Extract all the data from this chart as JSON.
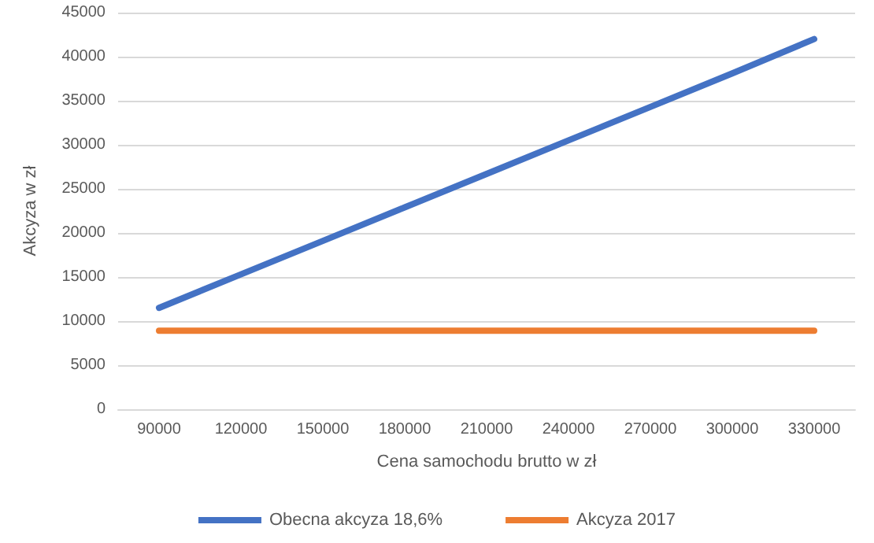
{
  "chart_data": {
    "type": "line",
    "xlabel": "Cena samochodu brutto w zł",
    "ylabel": "Akcyza w zł",
    "categories": [
      "90000",
      "120000",
      "150000",
      "180000",
      "210000",
      "240000",
      "270000",
      "300000",
      "330000"
    ],
    "series": [
      {
        "name": "Obecna akcyza 18,6%",
        "color": "#4472c4",
        "values": [
          11500,
          15300,
          19100,
          22900,
          26700,
          30500,
          34300,
          38100,
          42000
        ]
      },
      {
        "name": "Akcyza 2017",
        "color": "#ed7d31",
        "values": [
          8900,
          8900,
          8900,
          8900,
          8900,
          8900,
          8900,
          8900,
          8900
        ]
      }
    ],
    "ylim": [
      0,
      45000
    ],
    "yticks": [
      0,
      5000,
      10000,
      15000,
      20000,
      25000,
      30000,
      35000,
      40000,
      45000
    ],
    "grid": "y",
    "legend": "bottom",
    "marker": "none",
    "line_style": "solid"
  }
}
